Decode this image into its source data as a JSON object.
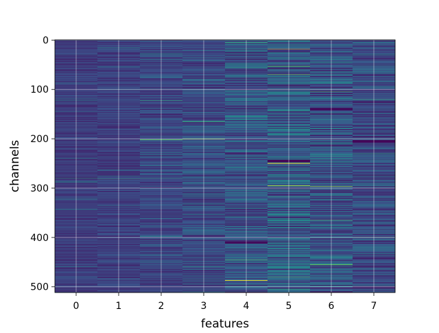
{
  "chart_data": {
    "type": "heatmap",
    "title": "",
    "xlabel": "features",
    "ylabel": "channels",
    "x_categories": [
      "0",
      "1",
      "2",
      "3",
      "4",
      "5",
      "6",
      "7"
    ],
    "y_ticks": [
      "0",
      "100",
      "200",
      "300",
      "400",
      "500"
    ],
    "n_rows": 512,
    "n_cols": 8,
    "grid": true,
    "colormap": "viridis",
    "colormap_stops": [
      "#440154",
      "#3b528b",
      "#21918c",
      "#5ec962",
      "#fde725"
    ],
    "column_mean": [
      0.18,
      0.19,
      0.21,
      0.23,
      0.26,
      0.28,
      0.26,
      0.22
    ],
    "column_spread": [
      0.07,
      0.08,
      0.1,
      0.13,
      0.17,
      0.2,
      0.18,
      0.14
    ],
    "highlights": [
      {
        "feature": 0,
        "channel": 280,
        "value": 0.55
      },
      {
        "feature": 0,
        "channel": 123,
        "value": 0.45
      },
      {
        "feature": 1,
        "channel": 281,
        "value": 0.58
      },
      {
        "feature": 1,
        "channel": 15,
        "value": 0.5
      },
      {
        "feature": 2,
        "channel": 123,
        "value": 0.6
      },
      {
        "feature": 2,
        "channel": 202,
        "value": 0.72
      },
      {
        "feature": 2,
        "channel": 280,
        "value": 0.55
      },
      {
        "feature": 3,
        "channel": 201,
        "value": 0.85
      },
      {
        "feature": 3,
        "channel": 165,
        "value": 0.6
      },
      {
        "feature": 4,
        "channel": 5,
        "value": 0.6
      },
      {
        "feature": 4,
        "channel": 487,
        "value": 0.95
      },
      {
        "feature": 4,
        "channel": 445,
        "value": 0.75
      },
      {
        "feature": 5,
        "channel": 18,
        "value": 0.95
      },
      {
        "feature": 5,
        "channel": 70,
        "value": 0.8
      },
      {
        "feature": 5,
        "channel": 250,
        "value": 0.97
      },
      {
        "feature": 5,
        "channel": 295,
        "value": 0.85
      },
      {
        "feature": 5,
        "channel": 480,
        "value": 0.7
      },
      {
        "feature": 6,
        "channel": 105,
        "value": 0.7
      },
      {
        "feature": 6,
        "channel": 296,
        "value": 0.92
      },
      {
        "feature": 6,
        "channel": 365,
        "value": 0.7
      },
      {
        "feature": 6,
        "channel": 455,
        "value": 0.75
      },
      {
        "feature": 7,
        "channel": 120,
        "value": 0.6
      },
      {
        "feature": 7,
        "channel": 400,
        "value": 0.7
      },
      {
        "feature": 7,
        "channel": 230,
        "value": 0.55
      }
    ],
    "low_bands": [
      {
        "feature": 5,
        "channel": 245,
        "value": 0.0
      },
      {
        "feature": 6,
        "channel": 140,
        "value": 0.02
      },
      {
        "feature": 7,
        "channel": 205,
        "value": 0.0
      },
      {
        "feature": 4,
        "channel": 410,
        "value": 0.02
      }
    ]
  }
}
